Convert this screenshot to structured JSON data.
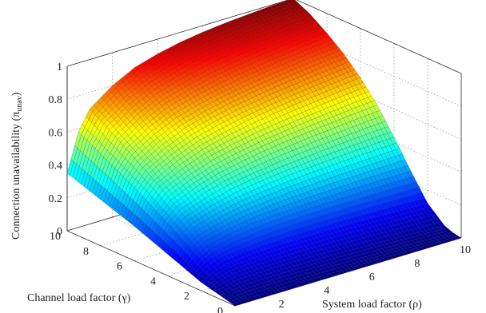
{
  "chart_data": {
    "type": "surface",
    "title": "",
    "xlabel": "System load factor (ρ)",
    "ylabel": "Channel load factor (γ)",
    "zlabel_main": "Connection unavailability (π",
    "zlabel_sub": "unav",
    "zlabel_close": ")",
    "xlim": [
      0,
      10
    ],
    "ylim": [
      0,
      10
    ],
    "zlim": [
      0,
      1
    ],
    "x_ticks": [
      "0",
      "2",
      "4",
      "6",
      "8",
      "10"
    ],
    "y_ticks": [
      "0",
      "2",
      "4",
      "6",
      "8",
      "10"
    ],
    "z_ticks": [
      "0",
      "0.2",
      "0.4",
      "0.6",
      "0.8",
      "1"
    ],
    "grid": true,
    "colormap": "jet",
    "surface": {
      "x_samples": [
        0,
        0.5,
        1,
        2,
        3,
        4,
        5,
        6,
        7,
        8,
        9,
        10
      ],
      "z_at_y_max": [
        0.35,
        0.58,
        0.7,
        0.8,
        0.87,
        0.91,
        0.94,
        0.96,
        0.975,
        0.985,
        0.995,
        1.0
      ],
      "z_at_x0_y_samples": [
        0,
        2,
        4,
        6,
        8,
        10
      ],
      "z_at_x0": [
        0,
        0.05,
        0.13,
        0.21,
        0.28,
        0.35
      ],
      "z_at_x_max_y_samples": [
        0,
        0.5,
        1,
        2,
        3,
        4,
        5,
        6,
        7,
        8,
        9,
        10
      ],
      "z_at_x_max": [
        0,
        0.01,
        0.03,
        0.12,
        0.27,
        0.43,
        0.58,
        0.7,
        0.8,
        0.88,
        0.95,
        1.0
      ]
    }
  }
}
